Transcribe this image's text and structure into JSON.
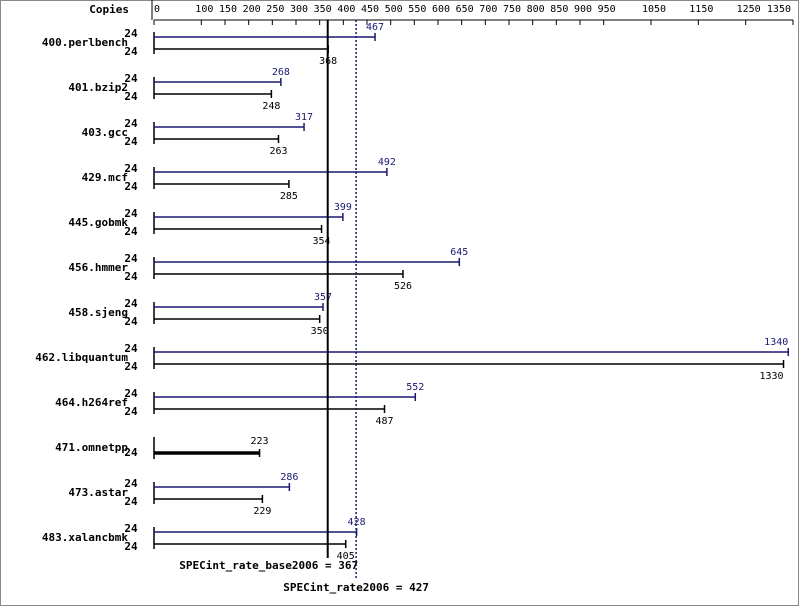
{
  "chart_data": {
    "type": "bar",
    "orientation": "horizontal",
    "axis_label": "Copies",
    "xlim": [
      0,
      1350
    ],
    "xticks": [
      0,
      100,
      150,
      200,
      250,
      300,
      350,
      400,
      450,
      500,
      550,
      600,
      650,
      700,
      750,
      800,
      850,
      900,
      950,
      1050,
      1150,
      1250,
      1350
    ],
    "categories": [
      "400.perlbench",
      "401.bzip2",
      "403.gcc",
      "429.mcf",
      "445.gobmk",
      "456.hmmer",
      "458.sjeng",
      "462.libquantum",
      "464.h264ref",
      "471.omnetpp",
      "473.astar",
      "483.xalancbmk"
    ],
    "series": [
      {
        "color": "#191970",
        "values": [
          467,
          268,
          317,
          492,
          399,
          645,
          357,
          1340,
          552,
          null,
          286,
          428
        ],
        "copies": [
          "24",
          "24",
          "24",
          "24",
          "24",
          "24",
          "24",
          "24",
          "24",
          null,
          "24",
          "24"
        ]
      },
      {
        "color": "#000000",
        "values": [
          368,
          248,
          263,
          285,
          354,
          526,
          350,
          1330,
          487,
          223,
          229,
          405
        ],
        "copies": [
          "24",
          "24",
          "24",
          "24",
          "24",
          "24",
          "24",
          "24",
          "24",
          "24",
          "24",
          "24"
        ]
      }
    ],
    "reference_lines": [
      {
        "label": "SPECint_rate_base2006 = 367",
        "value": 367,
        "style": "solid",
        "color": "#000000"
      },
      {
        "label": "SPECint_rate2006 = 427",
        "value": 427,
        "style": "dotted",
        "color": "#191970"
      }
    ]
  }
}
